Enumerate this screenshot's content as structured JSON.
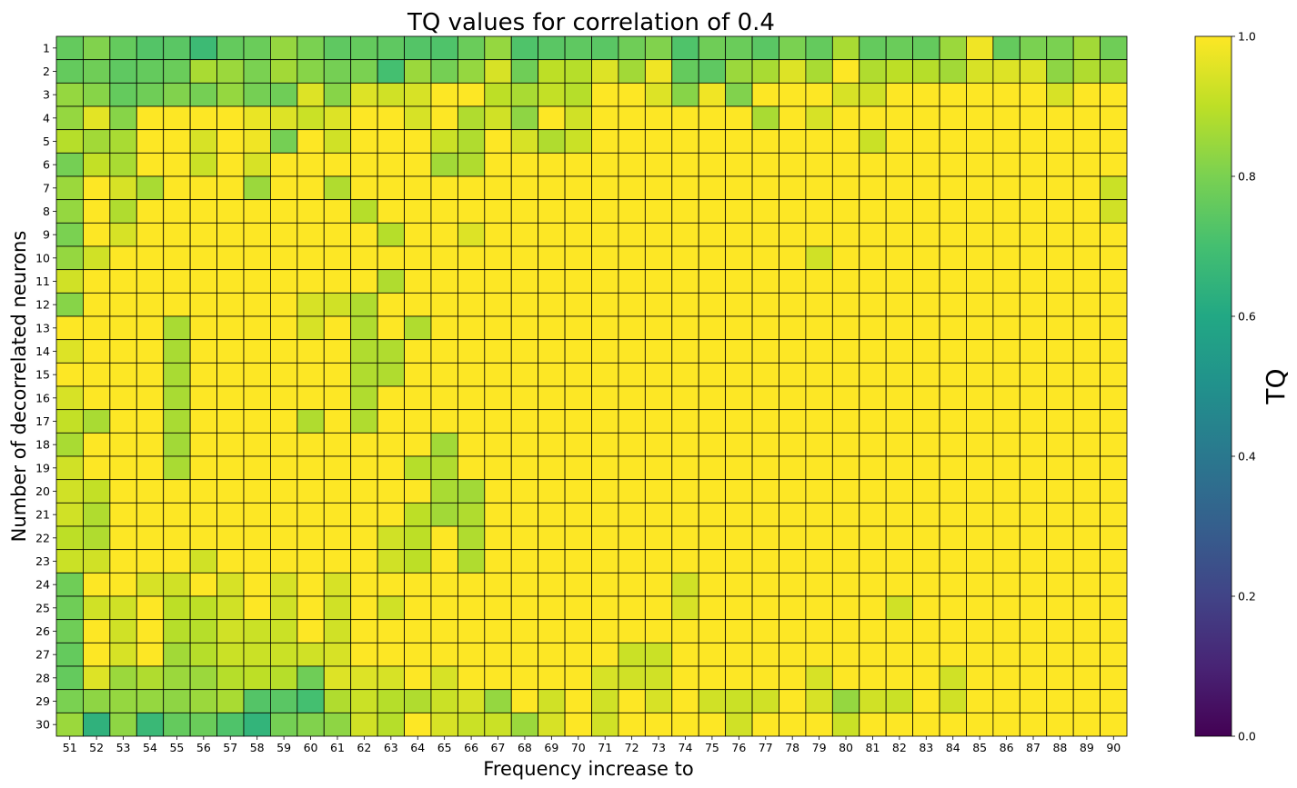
{
  "chart_data": {
    "type": "heatmap",
    "title": "TQ values for correlation of 0.4",
    "xlabel": "Frequency increase to",
    "ylabel": "Number of decorrelated neurons",
    "x": [
      51,
      52,
      53,
      54,
      55,
      56,
      57,
      58,
      59,
      60,
      61,
      62,
      63,
      64,
      65,
      66,
      67,
      68,
      69,
      70,
      71,
      72,
      73,
      74,
      75,
      76,
      77,
      78,
      79,
      80,
      81,
      82,
      83,
      84,
      85,
      86,
      87,
      88,
      89,
      90
    ],
    "y": [
      1,
      2,
      3,
      4,
      5,
      6,
      7,
      8,
      9,
      10,
      11,
      12,
      13,
      14,
      15,
      16,
      17,
      18,
      19,
      20,
      21,
      22,
      23,
      24,
      25,
      26,
      27,
      28,
      29,
      30
    ],
    "colorbar": {
      "label": "TQ",
      "ticks": [
        "0.0",
        "0.2",
        "0.4",
        "0.6",
        "0.8",
        "1.0"
      ],
      "range": [
        0,
        1
      ],
      "colormap": "viridis"
    },
    "grid": true,
    "values": [
      [
        0.76,
        0.81,
        0.76,
        0.73,
        0.74,
        0.68,
        0.76,
        0.77,
        0.84,
        0.8,
        0.75,
        0.76,
        0.75,
        0.73,
        0.72,
        0.77,
        0.84,
        0.72,
        0.74,
        0.75,
        0.74,
        0.78,
        0.81,
        0.72,
        0.78,
        0.77,
        0.74,
        0.8,
        0.76,
        0.87,
        0.76,
        0.77,
        0.76,
        0.85,
        0.98,
        0.76,
        0.8,
        0.8,
        0.86,
        0.78
      ],
      [
        0.76,
        0.78,
        0.75,
        0.76,
        0.77,
        0.87,
        0.85,
        0.8,
        0.86,
        0.82,
        0.79,
        0.8,
        0.7,
        0.85,
        0.79,
        0.84,
        0.94,
        0.78,
        0.9,
        0.89,
        0.95,
        0.86,
        0.98,
        0.76,
        0.75,
        0.85,
        0.87,
        0.95,
        0.87,
        1.0,
        0.88,
        0.9,
        0.89,
        0.86,
        0.94,
        0.95,
        0.95,
        0.83,
        0.88,
        0.86
      ],
      [
        0.84,
        0.82,
        0.76,
        0.78,
        0.81,
        0.79,
        0.84,
        0.79,
        0.78,
        0.95,
        0.82,
        0.95,
        0.93,
        0.94,
        1.0,
        1.0,
        0.9,
        0.87,
        0.91,
        0.89,
        1.0,
        1.0,
        0.95,
        0.82,
        0.98,
        0.81,
        1.0,
        1.0,
        1.0,
        0.94,
        0.93,
        1.0,
        1.0,
        1.0,
        1.0,
        1.0,
        1.0,
        0.94,
        1.0,
        1.0
      ],
      [
        0.84,
        0.96,
        0.82,
        1.0,
        1.0,
        1.0,
        1.0,
        0.97,
        0.95,
        0.92,
        0.95,
        1.0,
        1.0,
        0.94,
        1.0,
        0.88,
        0.93,
        0.83,
        1.0,
        0.93,
        1.0,
        1.0,
        1.0,
        1.0,
        1.0,
        1.0,
        0.87,
        1.0,
        0.94,
        1.0,
        1.0,
        1.0,
        1.0,
        1.0,
        1.0,
        1.0,
        1.0,
        1.0,
        1.0,
        1.0
      ],
      [
        0.89,
        0.86,
        0.87,
        1.0,
        1.0,
        0.94,
        1.0,
        0.98,
        0.79,
        1.0,
        0.93,
        1.0,
        1.0,
        1.0,
        0.92,
        0.88,
        1.0,
        0.94,
        0.88,
        0.92,
        1.0,
        1.0,
        1.0,
        1.0,
        1.0,
        1.0,
        1.0,
        1.0,
        1.0,
        1.0,
        0.92,
        1.0,
        1.0,
        1.0,
        1.0,
        1.0,
        1.0,
        1.0,
        1.0,
        1.0
      ],
      [
        0.79,
        0.91,
        0.87,
        1.0,
        1.0,
        0.92,
        1.0,
        0.94,
        1.0,
        1.0,
        1.0,
        1.0,
        1.0,
        1.0,
        0.86,
        0.88,
        1.0,
        1.0,
        1.0,
        1.0,
        1.0,
        1.0,
        1.0,
        1.0,
        1.0,
        1.0,
        1.0,
        1.0,
        1.0,
        1.0,
        1.0,
        1.0,
        1.0,
        1.0,
        1.0,
        1.0,
        1.0,
        1.0,
        1.0,
        1.0
      ],
      [
        0.85,
        1.0,
        0.94,
        0.87,
        1.0,
        1.0,
        1.0,
        0.85,
        1.0,
        1.0,
        0.88,
        1.0,
        1.0,
        1.0,
        1.0,
        1.0,
        1.0,
        1.0,
        1.0,
        1.0,
        1.0,
        1.0,
        1.0,
        1.0,
        1.0,
        1.0,
        1.0,
        1.0,
        1.0,
        1.0,
        1.0,
        1.0,
        1.0,
        1.0,
        1.0,
        1.0,
        1.0,
        1.0,
        1.0,
        0.92
      ],
      [
        0.84,
        1.0,
        0.88,
        1.0,
        1.0,
        1.0,
        1.0,
        1.0,
        1.0,
        1.0,
        1.0,
        0.89,
        1.0,
        1.0,
        1.0,
        1.0,
        1.0,
        1.0,
        1.0,
        1.0,
        1.0,
        1.0,
        1.0,
        1.0,
        1.0,
        1.0,
        1.0,
        1.0,
        1.0,
        1.0,
        1.0,
        1.0,
        1.0,
        1.0,
        1.0,
        1.0,
        1.0,
        1.0,
        1.0,
        0.93
      ],
      [
        0.8,
        1.0,
        0.94,
        1.0,
        1.0,
        1.0,
        1.0,
        1.0,
        1.0,
        1.0,
        1.0,
        1.0,
        0.89,
        1.0,
        1.0,
        0.95,
        1.0,
        1.0,
        1.0,
        1.0,
        1.0,
        1.0,
        1.0,
        1.0,
        1.0,
        1.0,
        1.0,
        1.0,
        1.0,
        1.0,
        1.0,
        1.0,
        1.0,
        1.0,
        1.0,
        1.0,
        1.0,
        1.0,
        1.0,
        1.0
      ],
      [
        0.84,
        0.93,
        1.0,
        1.0,
        1.0,
        1.0,
        1.0,
        1.0,
        1.0,
        1.0,
        1.0,
        1.0,
        1.0,
        1.0,
        1.0,
        1.0,
        1.0,
        1.0,
        1.0,
        1.0,
        1.0,
        1.0,
        1.0,
        1.0,
        1.0,
        1.0,
        1.0,
        1.0,
        0.93,
        1.0,
        1.0,
        1.0,
        1.0,
        1.0,
        1.0,
        1.0,
        1.0,
        1.0,
        1.0,
        1.0
      ],
      [
        0.93,
        1.0,
        1.0,
        1.0,
        1.0,
        1.0,
        1.0,
        1.0,
        1.0,
        1.0,
        1.0,
        1.0,
        0.88,
        1.0,
        1.0,
        1.0,
        1.0,
        1.0,
        1.0,
        1.0,
        1.0,
        1.0,
        1.0,
        1.0,
        1.0,
        1.0,
        1.0,
        1.0,
        1.0,
        1.0,
        1.0,
        1.0,
        1.0,
        1.0,
        1.0,
        1.0,
        1.0,
        1.0,
        1.0,
        1.0
      ],
      [
        0.82,
        1.0,
        1.0,
        1.0,
        1.0,
        1.0,
        1.0,
        1.0,
        1.0,
        0.94,
        0.93,
        0.88,
        1.0,
        1.0,
        1.0,
        1.0,
        1.0,
        1.0,
        1.0,
        1.0,
        1.0,
        1.0,
        1.0,
        1.0,
        1.0,
        1.0,
        1.0,
        1.0,
        1.0,
        1.0,
        1.0,
        1.0,
        1.0,
        1.0,
        1.0,
        1.0,
        1.0,
        1.0,
        1.0,
        1.0
      ],
      [
        1.0,
        1.0,
        1.0,
        1.0,
        0.87,
        1.0,
        1.0,
        1.0,
        1.0,
        0.94,
        1.0,
        0.88,
        1.0,
        0.88,
        1.0,
        1.0,
        1.0,
        1.0,
        1.0,
        1.0,
        1.0,
        1.0,
        1.0,
        1.0,
        1.0,
        1.0,
        1.0,
        1.0,
        1.0,
        1.0,
        1.0,
        1.0,
        1.0,
        1.0,
        1.0,
        1.0,
        1.0,
        1.0,
        1.0,
        1.0
      ],
      [
        0.95,
        1.0,
        1.0,
        1.0,
        0.87,
        1.0,
        1.0,
        1.0,
        1.0,
        1.0,
        1.0,
        0.88,
        0.88,
        1.0,
        1.0,
        1.0,
        1.0,
        1.0,
        1.0,
        1.0,
        1.0,
        1.0,
        1.0,
        1.0,
        1.0,
        1.0,
        1.0,
        1.0,
        1.0,
        1.0,
        1.0,
        1.0,
        1.0,
        1.0,
        1.0,
        1.0,
        1.0,
        1.0,
        1.0,
        1.0
      ],
      [
        1.0,
        1.0,
        1.0,
        1.0,
        0.87,
        1.0,
        1.0,
        1.0,
        1.0,
        1.0,
        1.0,
        0.88,
        0.88,
        1.0,
        1.0,
        1.0,
        1.0,
        1.0,
        1.0,
        1.0,
        1.0,
        1.0,
        1.0,
        1.0,
        1.0,
        1.0,
        1.0,
        1.0,
        1.0,
        1.0,
        1.0,
        1.0,
        1.0,
        1.0,
        1.0,
        1.0,
        1.0,
        1.0,
        1.0,
        1.0
      ],
      [
        0.94,
        1.0,
        1.0,
        1.0,
        0.87,
        1.0,
        1.0,
        1.0,
        1.0,
        1.0,
        1.0,
        0.88,
        1.0,
        1.0,
        1.0,
        1.0,
        1.0,
        1.0,
        1.0,
        1.0,
        1.0,
        1.0,
        1.0,
        1.0,
        1.0,
        1.0,
        1.0,
        1.0,
        1.0,
        1.0,
        1.0,
        1.0,
        1.0,
        1.0,
        1.0,
        1.0,
        1.0,
        1.0,
        1.0,
        1.0
      ],
      [
        0.91,
        0.87,
        1.0,
        1.0,
        0.87,
        1.0,
        1.0,
        1.0,
        1.0,
        0.88,
        1.0,
        0.88,
        1.0,
        1.0,
        1.0,
        1.0,
        1.0,
        1.0,
        1.0,
        1.0,
        1.0,
        1.0,
        1.0,
        1.0,
        1.0,
        1.0,
        1.0,
        1.0,
        1.0,
        1.0,
        1.0,
        1.0,
        1.0,
        1.0,
        1.0,
        1.0,
        1.0,
        1.0,
        1.0,
        1.0
      ],
      [
        0.87,
        1.0,
        1.0,
        1.0,
        0.86,
        1.0,
        1.0,
        1.0,
        1.0,
        1.0,
        1.0,
        1.0,
        1.0,
        1.0,
        0.86,
        1.0,
        1.0,
        1.0,
        1.0,
        1.0,
        1.0,
        1.0,
        1.0,
        1.0,
        1.0,
        1.0,
        1.0,
        1.0,
        1.0,
        1.0,
        1.0,
        1.0,
        1.0,
        1.0,
        1.0,
        1.0,
        1.0,
        1.0,
        1.0,
        1.0
      ],
      [
        0.93,
        1.0,
        1.0,
        1.0,
        0.87,
        1.0,
        1.0,
        1.0,
        1.0,
        1.0,
        1.0,
        1.0,
        1.0,
        0.89,
        0.88,
        1.0,
        1.0,
        1.0,
        1.0,
        1.0,
        1.0,
        1.0,
        1.0,
        1.0,
        1.0,
        1.0,
        1.0,
        1.0,
        1.0,
        1.0,
        1.0,
        1.0,
        1.0,
        1.0,
        1.0,
        1.0,
        1.0,
        1.0,
        1.0,
        1.0
      ],
      [
        0.93,
        0.91,
        1.0,
        1.0,
        1.0,
        1.0,
        1.0,
        1.0,
        1.0,
        1.0,
        1.0,
        1.0,
        1.0,
        1.0,
        0.87,
        0.86,
        1.0,
        1.0,
        1.0,
        1.0,
        1.0,
        1.0,
        1.0,
        1.0,
        1.0,
        1.0,
        1.0,
        1.0,
        1.0,
        1.0,
        1.0,
        1.0,
        1.0,
        1.0,
        1.0,
        1.0,
        1.0,
        1.0,
        1.0,
        1.0
      ],
      [
        0.93,
        0.88,
        1.0,
        1.0,
        1.0,
        1.0,
        1.0,
        1.0,
        1.0,
        1.0,
        1.0,
        1.0,
        1.0,
        0.9,
        0.86,
        0.88,
        1.0,
        1.0,
        1.0,
        1.0,
        1.0,
        1.0,
        1.0,
        1.0,
        1.0,
        1.0,
        1.0,
        1.0,
        1.0,
        1.0,
        1.0,
        1.0,
        1.0,
        1.0,
        1.0,
        1.0,
        1.0,
        1.0,
        1.0,
        1.0
      ],
      [
        0.9,
        0.88,
        1.0,
        1.0,
        1.0,
        1.0,
        1.0,
        1.0,
        1.0,
        1.0,
        1.0,
        1.0,
        0.93,
        0.9,
        1.0,
        0.88,
        1.0,
        1.0,
        1.0,
        1.0,
        1.0,
        1.0,
        1.0,
        1.0,
        1.0,
        1.0,
        1.0,
        1.0,
        1.0,
        1.0,
        1.0,
        1.0,
        1.0,
        1.0,
        1.0,
        1.0,
        1.0,
        1.0,
        1.0,
        1.0
      ],
      [
        0.92,
        0.93,
        1.0,
        1.0,
        1.0,
        0.93,
        1.0,
        1.0,
        1.0,
        1.0,
        1.0,
        1.0,
        0.93,
        0.9,
        1.0,
        0.88,
        1.0,
        1.0,
        1.0,
        1.0,
        1.0,
        1.0,
        1.0,
        1.0,
        1.0,
        1.0,
        1.0,
        1.0,
        1.0,
        1.0,
        1.0,
        1.0,
        1.0,
        1.0,
        1.0,
        1.0,
        1.0,
        1.0,
        1.0,
        1.0
      ],
      [
        0.78,
        1.0,
        1.0,
        0.94,
        0.93,
        1.0,
        0.94,
        1.0,
        0.94,
        1.0,
        0.94,
        1.0,
        1.0,
        1.0,
        1.0,
        1.0,
        1.0,
        1.0,
        1.0,
        1.0,
        1.0,
        1.0,
        1.0,
        0.93,
        1.0,
        1.0,
        1.0,
        1.0,
        1.0,
        1.0,
        1.0,
        1.0,
        1.0,
        1.0,
        1.0,
        1.0,
        1.0,
        1.0,
        1.0,
        1.0
      ],
      [
        0.78,
        0.93,
        0.93,
        1.0,
        0.9,
        0.9,
        0.93,
        1.0,
        0.93,
        1.0,
        0.93,
        1.0,
        0.93,
        1.0,
        1.0,
        1.0,
        1.0,
        1.0,
        1.0,
        1.0,
        1.0,
        1.0,
        1.0,
        0.94,
        1.0,
        1.0,
        1.0,
        1.0,
        1.0,
        1.0,
        1.0,
        0.93,
        1.0,
        1.0,
        1.0,
        1.0,
        1.0,
        1.0,
        1.0,
        1.0
      ],
      [
        0.78,
        1.0,
        0.93,
        1.0,
        0.89,
        0.89,
        0.93,
        0.92,
        0.92,
        1.0,
        0.93,
        1.0,
        1.0,
        1.0,
        1.0,
        1.0,
        1.0,
        1.0,
        1.0,
        1.0,
        1.0,
        1.0,
        1.0,
        1.0,
        1.0,
        1.0,
        1.0,
        1.0,
        1.0,
        1.0,
        1.0,
        1.0,
        1.0,
        1.0,
        1.0,
        1.0,
        1.0,
        1.0,
        1.0,
        1.0
      ],
      [
        0.76,
        1.0,
        0.94,
        1.0,
        0.86,
        0.89,
        0.92,
        0.92,
        0.92,
        0.93,
        0.94,
        1.0,
        1.0,
        1.0,
        1.0,
        1.0,
        1.0,
        1.0,
        1.0,
        1.0,
        1.0,
        0.92,
        0.92,
        1.0,
        1.0,
        1.0,
        1.0,
        1.0,
        1.0,
        1.0,
        1.0,
        1.0,
        1.0,
        1.0,
        1.0,
        1.0,
        1.0,
        1.0,
        1.0,
        1.0
      ],
      [
        0.76,
        0.95,
        0.85,
        0.88,
        0.85,
        0.85,
        0.89,
        0.9,
        0.89,
        0.78,
        0.95,
        0.95,
        0.94,
        1.0,
        0.94,
        1.0,
        1.0,
        1.0,
        1.0,
        1.0,
        0.94,
        0.93,
        0.93,
        1.0,
        1.0,
        1.0,
        1.0,
        1.0,
        0.94,
        1.0,
        1.0,
        1.0,
        1.0,
        0.93,
        1.0,
        1.0,
        1.0,
        1.0,
        1.0,
        1.0
      ],
      [
        0.8,
        0.83,
        0.84,
        0.84,
        0.83,
        0.85,
        0.87,
        0.73,
        0.74,
        0.7,
        0.88,
        0.92,
        0.89,
        0.88,
        0.92,
        0.94,
        0.84,
        1.0,
        0.93,
        1.0,
        0.93,
        1.0,
        0.94,
        1.0,
        0.93,
        0.92,
        0.93,
        1.0,
        0.94,
        0.84,
        0.93,
        0.92,
        1.0,
        0.93,
        1.0,
        1.0,
        1.0,
        1.0,
        1.0,
        1.0
      ],
      [
        0.85,
        0.64,
        0.83,
        0.67,
        0.76,
        0.77,
        0.72,
        0.65,
        0.79,
        0.81,
        0.83,
        0.93,
        0.89,
        1.0,
        0.94,
        0.92,
        0.92,
        0.85,
        0.94,
        1.0,
        0.93,
        1.0,
        1.0,
        1.0,
        1.0,
        0.93,
        1.0,
        1.0,
        1.0,
        0.92,
        1.0,
        1.0,
        1.0,
        1.0,
        1.0,
        1.0,
        1.0,
        1.0,
        1.0,
        1.0
      ]
    ]
  }
}
